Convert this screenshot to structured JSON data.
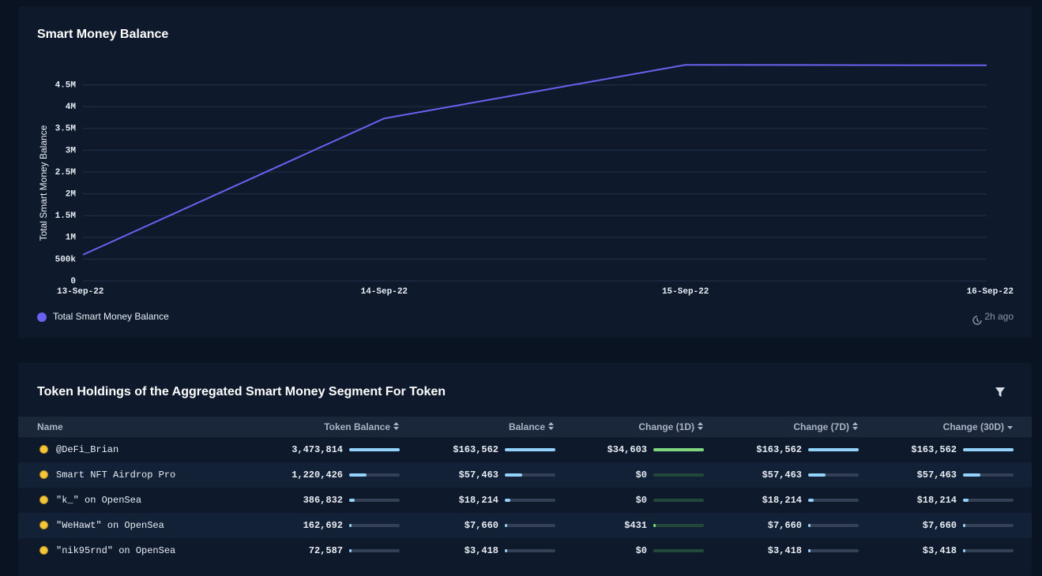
{
  "chart_data": {
    "type": "line",
    "title": "Smart Money Balance",
    "y_label": "Total Smart Money Balance",
    "categories": [
      "13-Sep-22",
      "14-Sep-22",
      "15-Sep-22",
      "16-Sep-22"
    ],
    "series": [
      {
        "name": "Total Smart Money Balance",
        "color": "#6a62ee",
        "values": [
          600000,
          3730000,
          4960000,
          4950000
        ]
      }
    ],
    "ylim": [
      0,
      5000000
    ],
    "yticks": [
      0,
      {
        "value": 500000,
        "label": "500k"
      },
      {
        "value": 1000000,
        "label": "1M"
      },
      {
        "value": 1500000,
        "label": "1.5M"
      },
      {
        "value": 2000000,
        "label": "2M"
      },
      {
        "value": 2500000,
        "label": "2.5M"
      },
      {
        "value": 3000000,
        "label": "3M"
      },
      {
        "value": 3500000,
        "label": "3.5M"
      },
      {
        "value": 4000000,
        "label": "4M"
      },
      {
        "value": 4500000,
        "label": "4.5M"
      }
    ],
    "grid": true,
    "updated": "2h ago"
  },
  "table": {
    "title": "Token Holdings of the Aggregated Smart Money Segment For Token",
    "columns": [
      "Name",
      "Token Balance",
      "Balance",
      "Change (1D)",
      "Change (7D)",
      "Change (30D)"
    ],
    "rows": [
      [
        "@DeFi_Brian",
        "3,473,814",
        "$163,562",
        "$34,603",
        "$163,562",
        "$163,562"
      ],
      [
        "Smart NFT Airdrop Pro",
        "1,220,426",
        "$57,463",
        "$0",
        "$57,463",
        "$57,463"
      ],
      [
        "\"k_\" on OpenSea",
        "386,832",
        "$18,214",
        "$0",
        "$18,214",
        "$18,214"
      ],
      [
        "\"WeHawt\" on OpenSea",
        "162,692",
        "$7,660",
        "$431",
        "$7,660",
        "$7,660"
      ],
      [
        "\"nik95rnd\" on OpenSea",
        "72,587",
        "$3,418",
        "$0",
        "$3,418",
        "$3,418"
      ]
    ]
  }
}
